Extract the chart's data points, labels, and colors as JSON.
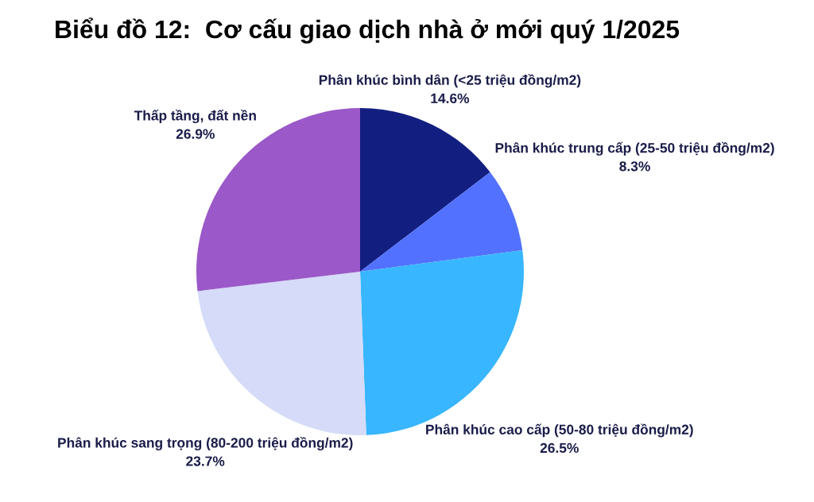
{
  "chart_data": {
    "type": "pie",
    "title": "Biểu đồ 12:  Cơ cấu giao dịch nhà ở mới quý 1/2025",
    "categories": [
      "Phân khúc bình dân (<25 triệu đồng/m2)",
      "Phân khúc trung cấp (25-50 triệu đồng/m2)",
      "Phân khúc cao cấp (50-80 triệu đồng/m2)",
      "Phân khúc sang trọng (80-200 triệu đồng/m2)",
      "Thấp tầng, đất nền"
    ],
    "values": [
      14.6,
      8.3,
      26.5,
      23.7,
      26.9
    ],
    "colors": [
      "#131f80",
      "#5271ff",
      "#38b6ff",
      "#d5dbf8",
      "#9b58c8"
    ],
    "value_labels": [
      "14.6%",
      "8.3%",
      "26.5%",
      "23.7%",
      "26.9%"
    ]
  }
}
